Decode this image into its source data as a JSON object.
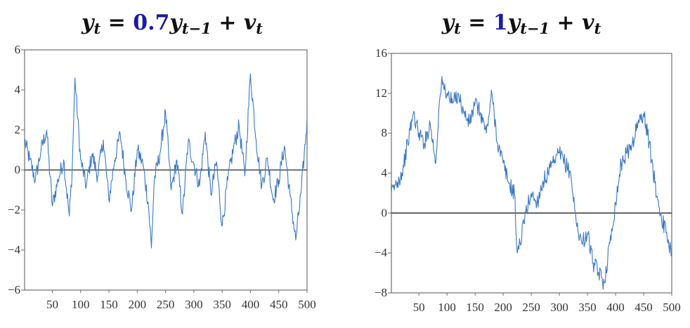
{
  "chart_data": [
    {
      "type": "line",
      "title": {
        "pre": "y",
        "pre_sub": "t",
        "eq": " = ",
        "coef": "0.7",
        "mid": "y",
        "mid_sub": "t−1",
        "plus": " + ",
        "post": "v",
        "post_sub": "t"
      },
      "xlabel": "",
      "ylabel": "",
      "xlim": [
        1,
        500
      ],
      "ylim": [
        -6,
        6
      ],
      "x_ticks": [
        50,
        100,
        150,
        200,
        250,
        300,
        350,
        400,
        450,
        500
      ],
      "y_ticks": [
        6,
        4,
        2,
        0,
        -2,
        -4,
        -6
      ],
      "y_tick_labels": [
        "6",
        "4",
        "2",
        "0",
        "−2",
        "−4",
        "−6"
      ],
      "zero_line": true,
      "series": [
        {
          "color": "#3a78c3",
          "x": [
            1,
            10,
            20,
            30,
            40,
            50,
            60,
            70,
            80,
            85,
            90,
            100,
            110,
            120,
            130,
            140,
            150,
            160,
            170,
            180,
            190,
            200,
            210,
            220,
            225,
            230,
            240,
            250,
            260,
            270,
            280,
            290,
            300,
            310,
            320,
            330,
            340,
            350,
            360,
            370,
            380,
            390,
            400,
            410,
            420,
            430,
            440,
            450,
            460,
            470,
            480,
            490,
            500
          ],
          "y": [
            1.5,
            0.5,
            -0.5,
            1.0,
            2.0,
            -1.8,
            -0.5,
            0.5,
            -2.3,
            0.0,
            4.6,
            0.5,
            -0.8,
            0.8,
            -0.3,
            1.5,
            -1.5,
            0.5,
            1.8,
            -0.5,
            -2.0,
            1.0,
            0.3,
            -1.8,
            -3.9,
            -0.5,
            0.8,
            2.9,
            -1.0,
            0.5,
            -2.2,
            1.4,
            0.3,
            -0.8,
            1.9,
            -1.2,
            0.4,
            -2.8,
            -0.5,
            1.1,
            2.2,
            -0.3,
            4.8,
            1.5,
            -0.8,
            0.6,
            -1.5,
            -0.5,
            1.2,
            -1.3,
            -3.5,
            -1.0,
            2.5
          ]
        }
      ]
    },
    {
      "type": "line",
      "title": {
        "pre": "y",
        "pre_sub": "t",
        "eq": " = ",
        "coef": "1",
        "mid": "y",
        "mid_sub": "t−1",
        "plus": " + ",
        "post": "v",
        "post_sub": "t"
      },
      "xlabel": "",
      "ylabel": "",
      "xlim": [
        1,
        500
      ],
      "ylim": [
        -8,
        16
      ],
      "x_ticks": [
        50,
        100,
        150,
        200,
        250,
        300,
        350,
        400,
        450,
        500
      ],
      "y_ticks": [
        16,
        12,
        8,
        4,
        0,
        -4,
        -8
      ],
      "y_tick_labels": [
        "16",
        "12",
        "8",
        "4",
        "0",
        "−4",
        "−8"
      ],
      "zero_line": true,
      "series": [
        {
          "color": "#3a78c3",
          "x": [
            1,
            10,
            20,
            30,
            40,
            50,
            60,
            70,
            80,
            85,
            90,
            100,
            110,
            120,
            130,
            140,
            150,
            160,
            170,
            180,
            190,
            200,
            210,
            220,
            225,
            230,
            240,
            250,
            260,
            270,
            280,
            290,
            300,
            310,
            320,
            330,
            340,
            350,
            360,
            370,
            380,
            390,
            400,
            410,
            420,
            430,
            440,
            450,
            460,
            470,
            480,
            490,
            500
          ],
          "y": [
            2,
            3,
            4,
            7,
            10,
            8,
            7,
            9,
            5,
            10,
            13,
            12,
            11,
            12,
            10,
            9,
            11,
            10,
            8,
            12,
            7,
            5,
            3,
            2,
            -4,
            -3,
            0,
            2,
            1,
            3,
            4,
            5,
            6,
            5,
            4,
            -1,
            -3,
            -2,
            -5,
            -6,
            -7,
            -3,
            1,
            5,
            6,
            7,
            9,
            10,
            7,
            3,
            0,
            -2,
            -4
          ]
        }
      ]
    }
  ]
}
